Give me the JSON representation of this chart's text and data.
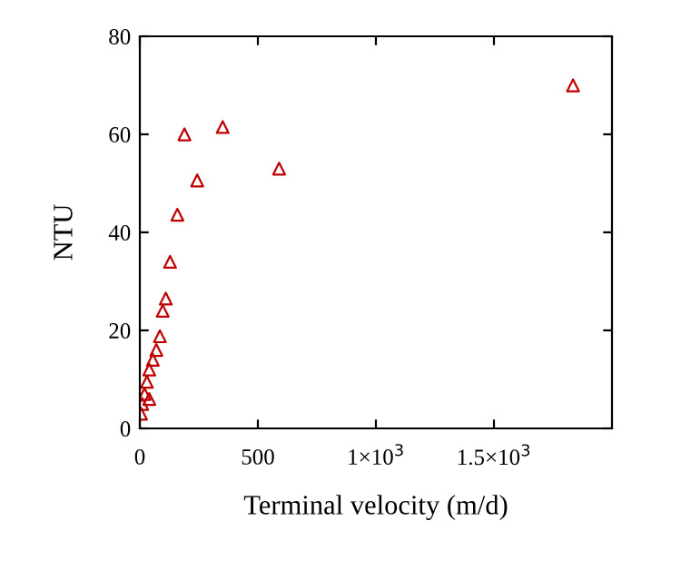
{
  "chart_data": {
    "type": "scatter",
    "xlabel": "Terminal velocity (m/d)",
    "ylabel": "NTU",
    "xlim": [
      0,
      2000
    ],
    "ylim": [
      0,
      80
    ],
    "xticks": [
      0,
      500,
      {
        "value": 1000,
        "label": "1×10$^{3}$"
      },
      {
        "value": 1500,
        "label": "1.5×10$^{3}$"
      }
    ],
    "yticks": [
      0,
      20,
      40,
      60,
      80
    ],
    "marker": "triangle",
    "grid": false,
    "series": [
      {
        "color": "#c00000",
        "x": [
          1835,
          590,
          351,
          243,
          189,
          159,
          128,
          110,
          97,
          85,
          70,
          55,
          40,
          30,
          20,
          10,
          5,
          40
        ],
        "values": [
          70,
          53,
          61.5,
          50.6,
          60,
          43.6,
          34,
          26.5,
          24,
          18.8,
          16,
          14,
          12,
          9.5,
          7,
          5,
          3,
          6
        ]
      }
    ]
  }
}
